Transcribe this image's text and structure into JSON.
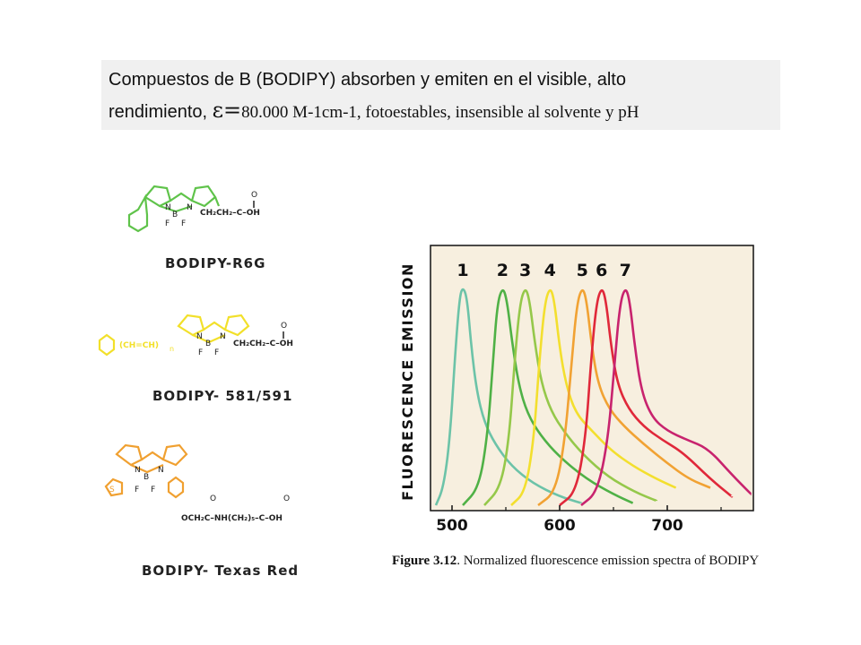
{
  "header": {
    "line1": "Compuestos de B (BODIPY) absorben y emiten en el visible, alto",
    "line2_prefix": "rendimiento,",
    "epsilon": "ε=",
    "line2_serif": "80.000 M-1cm-1, fotoestables, insensible al solvente y pH"
  },
  "structures": [
    {
      "name": "BODIPY-R6G",
      "color": "#5fc34a",
      "substituent": "CH2CH2-C-OH"
    },
    {
      "name": "BODIPY- 581/591",
      "color": "#f2e02a",
      "substituent": "CH2CH2-C-OH"
    },
    {
      "name": "BODIPY- Texas Red",
      "color": "#f0a030",
      "substituent": "OCH2C-NH(CH2)5-C-OH"
    }
  ],
  "caption": {
    "label": "Figure 3.12",
    "text": ". Normalized fluorescence emission spectra of BODIPY"
  },
  "chart_data": {
    "type": "line",
    "ylabel": "FLUORESCENCE EMISSION",
    "xlabel": "",
    "xticks": [
      500,
      600,
      700
    ],
    "xlim": [
      480,
      780
    ],
    "ylim": [
      0,
      1
    ],
    "background": "#f7efdf",
    "series": [
      {
        "name": "1",
        "color": "#6cc3a8",
        "x": [
          485,
          492,
          498,
          503,
          507,
          510,
          514,
          518,
          523,
          530,
          540,
          555,
          575,
          600,
          620
        ],
        "y": [
          0.0,
          0.08,
          0.3,
          0.7,
          0.95,
          1.0,
          0.95,
          0.72,
          0.52,
          0.38,
          0.28,
          0.18,
          0.1,
          0.04,
          0.01
        ]
      },
      {
        "name": "2",
        "color": "#4fb146",
        "x": [
          510,
          525,
          533,
          538,
          542,
          547,
          551,
          556,
          562,
          570,
          582,
          600,
          625,
          650,
          668
        ],
        "y": [
          0.0,
          0.08,
          0.32,
          0.65,
          0.92,
          1.0,
          0.94,
          0.74,
          0.55,
          0.42,
          0.32,
          0.22,
          0.12,
          0.05,
          0.01
        ]
      },
      {
        "name": "3",
        "color": "#95c84a",
        "x": [
          530,
          545,
          553,
          558,
          563,
          568,
          572,
          577,
          583,
          592,
          605,
          622,
          645,
          670,
          690
        ],
        "y": [
          0.0,
          0.08,
          0.3,
          0.65,
          0.92,
          1.0,
          0.94,
          0.74,
          0.56,
          0.43,
          0.33,
          0.23,
          0.13,
          0.06,
          0.02
        ]
      },
      {
        "name": "4",
        "color": "#f3df2e",
        "x": [
          555,
          568,
          576,
          581,
          586,
          591,
          595,
          600,
          606,
          615,
          630,
          648,
          668,
          690,
          708
        ],
        "y": [
          0.0,
          0.06,
          0.3,
          0.65,
          0.92,
          1.0,
          0.94,
          0.72,
          0.55,
          0.42,
          0.34,
          0.25,
          0.18,
          0.12,
          0.08
        ]
      },
      {
        "name": "5",
        "color": "#f1a233",
        "x": [
          580,
          596,
          605,
          611,
          616,
          621,
          625,
          630,
          636,
          646,
          660,
          678,
          698,
          720,
          740
        ],
        "y": [
          0.0,
          0.06,
          0.3,
          0.65,
          0.92,
          1.0,
          0.94,
          0.72,
          0.55,
          0.44,
          0.36,
          0.28,
          0.2,
          0.12,
          0.08
        ]
      },
      {
        "name": "6",
        "color": "#e0283a",
        "x": [
          600,
          615,
          624,
          629,
          634,
          639,
          643,
          648,
          654,
          664,
          678,
          695,
          715,
          740,
          760
        ],
        "y": [
          0.0,
          0.06,
          0.3,
          0.65,
          0.92,
          1.0,
          0.94,
          0.72,
          0.55,
          0.44,
          0.36,
          0.3,
          0.24,
          0.12,
          0.04
        ]
      },
      {
        "name": "7",
        "color": "#c8236e",
        "x": [
          620,
          635,
          645,
          651,
          656,
          661,
          665,
          670,
          676,
          686,
          700,
          718,
          738,
          760,
          778
        ],
        "y": [
          0.0,
          0.06,
          0.3,
          0.65,
          0.92,
          1.0,
          0.94,
          0.72,
          0.52,
          0.4,
          0.34,
          0.3,
          0.26,
          0.14,
          0.05
        ]
      }
    ]
  }
}
